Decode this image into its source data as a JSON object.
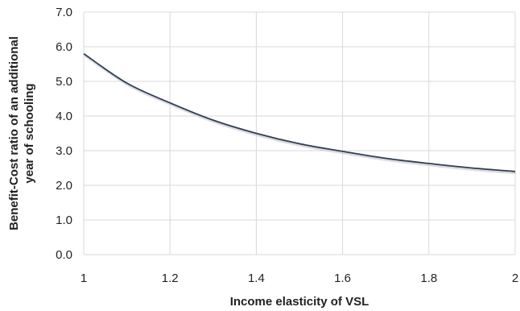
{
  "chart_data": {
    "type": "line",
    "title": "",
    "xlabel": "Income elasticity of VSL",
    "ylabel_lines": [
      "Benefit-Cost ratio of an additional",
      "year of schooling"
    ],
    "xlim": [
      1,
      2
    ],
    "ylim": [
      0,
      7
    ],
    "x_ticks": [
      1,
      1.2,
      1.4,
      1.6,
      1.8,
      2
    ],
    "x_tick_labels": [
      "1",
      "1.2",
      "1.4",
      "1.6",
      "1.8",
      "2"
    ],
    "y_ticks": [
      0,
      1,
      2,
      3,
      4,
      5,
      6,
      7
    ],
    "y_tick_labels": [
      "0.0",
      "1.0",
      "2.0",
      "3.0",
      "4.0",
      "5.0",
      "6.0",
      "7.0"
    ],
    "grid": true,
    "legend": "none",
    "line_color": "#2f3e55",
    "series": [
      {
        "x": [
          1.0,
          1.1,
          1.2,
          1.3,
          1.4,
          1.5,
          1.6,
          1.7,
          1.8,
          1.9,
          2.0
        ],
        "values": [
          5.8,
          4.95,
          4.38,
          3.88,
          3.5,
          3.2,
          2.98,
          2.78,
          2.63,
          2.5,
          2.4
        ]
      }
    ]
  }
}
